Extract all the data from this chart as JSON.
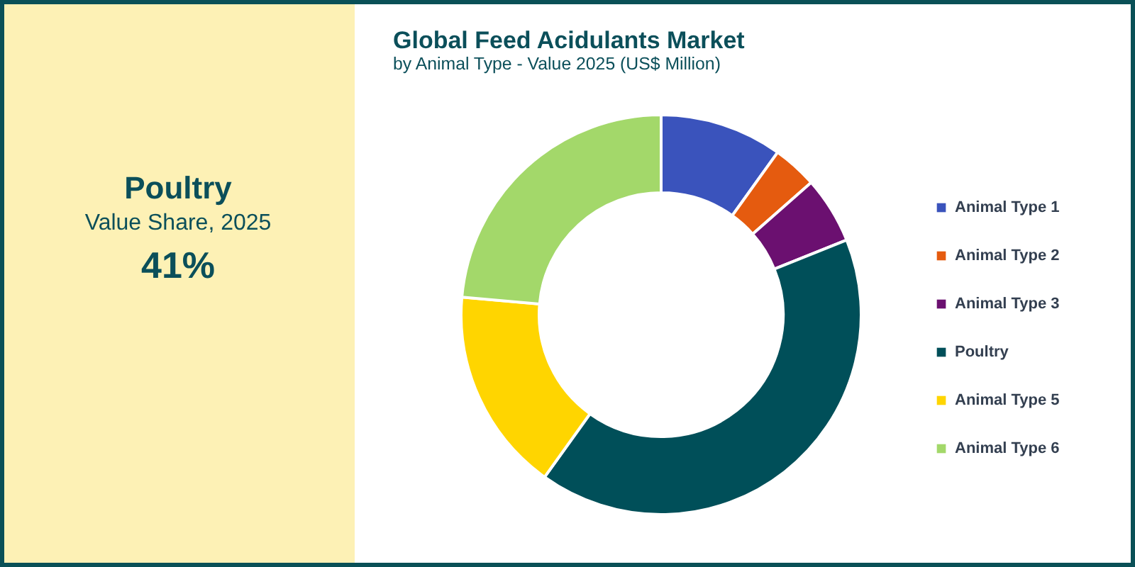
{
  "chart_data": {
    "type": "donut",
    "title": "Global Feed Acidulants Market",
    "subtitle": "by Animal Type - Value 2025 (US$ Million)",
    "categories": [
      "Animal Type 1",
      "Animal Type 2",
      "Animal Type 3",
      "Poultry",
      "Animal Type 5",
      "Animal Type 6"
    ],
    "values": [
      9.9,
      3.6,
      5.4,
      41,
      16.5,
      23.6
    ],
    "colors": [
      "#3a53bc",
      "#e55b0f",
      "#6b1070",
      "#004f59",
      "#ffd500",
      "#a3d86a"
    ],
    "legend": "right",
    "annotations": [
      "Poultry",
      "Value Share, 2025",
      "41%"
    ]
  }
}
